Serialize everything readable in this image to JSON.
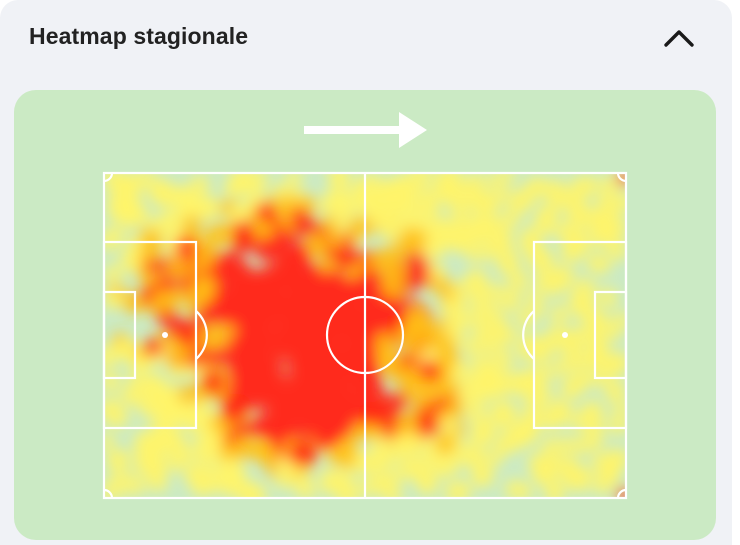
{
  "card": {
    "title": "Heatmap stagionale",
    "collapse_icon": "chevron-up-icon"
  },
  "heatmap": {
    "direction_icon": "arrow-right-icon",
    "attack_direction": "right",
    "colors": {
      "panel": "#cbeac4",
      "lines": "#ffffff",
      "low": "#fff46a",
      "mid": "#ffc21a",
      "high": "#ff2a1a"
    }
  }
}
